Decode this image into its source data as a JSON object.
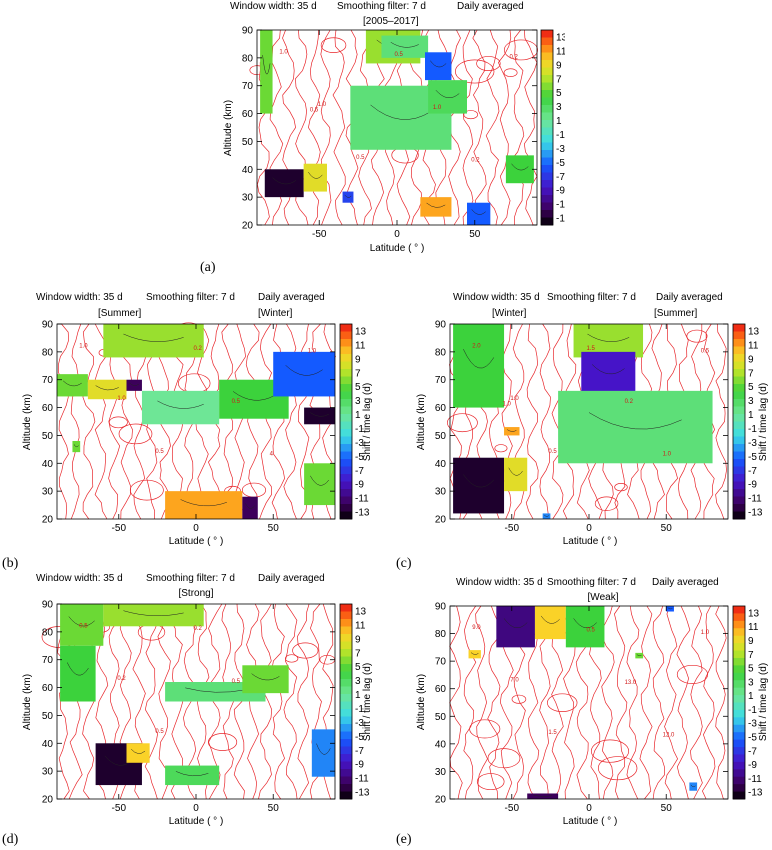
{
  "colorbar": {
    "label": "Shift / time lag (d)",
    "ticks": [
      "13",
      "11",
      "9",
      "7",
      "5",
      "3",
      "1",
      "-1",
      "-3",
      "-5",
      "-7",
      "-9",
      "-11",
      "-13"
    ],
    "range": [
      -13,
      13
    ]
  },
  "common": {
    "window": "Window width: 35 d",
    "smoothing": "Smoothing filter: 7 d",
    "averaging": "Daily averaged",
    "ylabel": "Altitude (km)",
    "xlabel": "Latitude ( ° )",
    "xticks": [
      "-50",
      "0",
      "50"
    ],
    "yticks": [
      "90",
      "80",
      "70",
      "60",
      "50",
      "40",
      "30",
      "20"
    ]
  },
  "chart_data": [
    {
      "type": "heatmap",
      "panel": "(a)",
      "header_center": "[2005–2017]",
      "xlim": [
        -90,
        90
      ],
      "ylim": [
        20,
        90
      ],
      "contour_labels": [
        "1.0",
        "1.0",
        "0.5",
        "0.5",
        "1.0",
        "0.2",
        "0.2",
        "0.5"
      ],
      "patches": [
        {
          "lat": [
            -88,
            -80
          ],
          "alt": [
            60,
            90
          ],
          "lag": 5
        },
        {
          "lat": [
            -20,
            15
          ],
          "alt": [
            78,
            90
          ],
          "lag": 6
        },
        {
          "lat": [
            -10,
            20
          ],
          "alt": [
            80,
            88
          ],
          "lag": 2
        },
        {
          "lat": [
            18,
            35
          ],
          "alt": [
            72,
            82
          ],
          "lag": -5
        },
        {
          "lat": [
            -30,
            35
          ],
          "alt": [
            47,
            70
          ],
          "lag": 2
        },
        {
          "lat": [
            20,
            45
          ],
          "alt": [
            60,
            72
          ],
          "lag": 3
        },
        {
          "lat": [
            -85,
            -60
          ],
          "alt": [
            30,
            40
          ],
          "lag": -12
        },
        {
          "lat": [
            -60,
            -45
          ],
          "alt": [
            32,
            42
          ],
          "lag": 8
        },
        {
          "lat": [
            -35,
            -28
          ],
          "alt": [
            28,
            32
          ],
          "lag": -6
        },
        {
          "lat": [
            15,
            35
          ],
          "alt": [
            23,
            30
          ],
          "lag": 10
        },
        {
          "lat": [
            45,
            60
          ],
          "alt": [
            20,
            28
          ],
          "lag": -5
        },
        {
          "lat": [
            70,
            88
          ],
          "alt": [
            35,
            45
          ],
          "lag": 4
        }
      ]
    },
    {
      "type": "heatmap",
      "panel": "(b)",
      "header_left": "[Summer]",
      "header_right": "[Winter]",
      "xlim": [
        -90,
        90
      ],
      "ylim": [
        20,
        90
      ],
      "contour_labels": [
        "1.0",
        "1.0",
        "0.5",
        "0.2",
        "0.5",
        "4",
        "1.0"
      ],
      "patches": [
        {
          "lat": [
            -60,
            5
          ],
          "alt": [
            78,
            90
          ],
          "lag": 6
        },
        {
          "lat": [
            -90,
            -70
          ],
          "alt": [
            64,
            72
          ],
          "lag": 5
        },
        {
          "lat": [
            -70,
            -45
          ],
          "alt": [
            63,
            70
          ],
          "lag": 8
        },
        {
          "lat": [
            -45,
            -35
          ],
          "alt": [
            66,
            70
          ],
          "lag": -11
        },
        {
          "lat": [
            -35,
            15
          ],
          "alt": [
            54,
            66
          ],
          "lag": 1
        },
        {
          "lat": [
            15,
            60
          ],
          "alt": [
            56,
            70
          ],
          "lag": 4
        },
        {
          "lat": [
            50,
            90
          ],
          "alt": [
            64,
            80
          ],
          "lag": -5
        },
        {
          "lat": [
            70,
            90
          ],
          "alt": [
            54,
            60
          ],
          "lag": -12
        },
        {
          "lat": [
            -80,
            -75
          ],
          "alt": [
            44,
            48
          ],
          "lag": 5
        },
        {
          "lat": [
            -20,
            30
          ],
          "alt": [
            20,
            30
          ],
          "lag": 10
        },
        {
          "lat": [
            30,
            40
          ],
          "alt": [
            20,
            28
          ],
          "lag": -11
        },
        {
          "lat": [
            70,
            90
          ],
          "alt": [
            25,
            40
          ],
          "lag": 5
        }
      ]
    },
    {
      "type": "heatmap",
      "panel": "(c)",
      "header_left": "[Winter]",
      "header_right": "[Summer]",
      "xlim": [
        -90,
        90
      ],
      "ylim": [
        20,
        90
      ],
      "contour_labels": [
        "2.0",
        "1.0",
        "0.5",
        "1.5",
        "0.2",
        "1.0",
        "0.5",
        "1.0"
      ],
      "patches": [
        {
          "lat": [
            -88,
            -55
          ],
          "alt": [
            60,
            90
          ],
          "lag": 4
        },
        {
          "lat": [
            -10,
            35
          ],
          "alt": [
            78,
            90
          ],
          "lag": 6
        },
        {
          "lat": [
            -5,
            30
          ],
          "alt": [
            65,
            80
          ],
          "lag": -8
        },
        {
          "lat": [
            -20,
            80
          ],
          "alt": [
            40,
            66
          ],
          "lag": 2
        },
        {
          "lat": [
            -88,
            -55
          ],
          "alt": [
            22,
            42
          ],
          "lag": -12
        },
        {
          "lat": [
            -55,
            -40
          ],
          "alt": [
            30,
            42
          ],
          "lag": 8
        },
        {
          "lat": [
            -55,
            -45
          ],
          "alt": [
            50,
            53
          ],
          "lag": 10
        },
        {
          "lat": [
            -30,
            -25
          ],
          "alt": [
            20,
            22
          ],
          "lag": -4
        }
      ]
    },
    {
      "type": "heatmap",
      "panel": "(d)",
      "header_center": "[Strong]",
      "xlim": [
        -90,
        90
      ],
      "ylim": [
        20,
        90
      ],
      "contour_labels": [
        "0.5",
        "0.2",
        "0.5",
        "0.2",
        "0.5"
      ],
      "patches": [
        {
          "lat": [
            -88,
            -60
          ],
          "alt": [
            75,
            90
          ],
          "lag": 5
        },
        {
          "lat": [
            -60,
            5
          ],
          "alt": [
            82,
            90
          ],
          "lag": 6
        },
        {
          "lat": [
            -88,
            -65
          ],
          "alt": [
            55,
            75
          ],
          "lag": 4
        },
        {
          "lat": [
            -20,
            45
          ],
          "alt": [
            55,
            62
          ],
          "lag": 2
        },
        {
          "lat": [
            30,
            60
          ],
          "alt": [
            58,
            68
          ],
          "lag": 5
        },
        {
          "lat": [
            -65,
            -35
          ],
          "alt": [
            25,
            40
          ],
          "lag": -12
        },
        {
          "lat": [
            -45,
            -30
          ],
          "alt": [
            33,
            40
          ],
          "lag": 9
        },
        {
          "lat": [
            -20,
            15
          ],
          "alt": [
            25,
            32
          ],
          "lag": 3
        },
        {
          "lat": [
            75,
            90
          ],
          "alt": [
            28,
            45
          ],
          "lag": -4
        }
      ]
    },
    {
      "type": "heatmap",
      "panel": "(e)",
      "header_center": "[Weak]",
      "xlim": [
        -90,
        90
      ],
      "ylim": [
        20,
        90
      ],
      "contour_labels": [
        "9.0",
        "7.0",
        "1.5",
        "0.5",
        "13.0",
        "12.0",
        "1.0"
      ],
      "patches": [
        {
          "lat": [
            -60,
            -35
          ],
          "alt": [
            75,
            90
          ],
          "lag": -10
        },
        {
          "lat": [
            -35,
            -15
          ],
          "alt": [
            78,
            90
          ],
          "lag": 9
        },
        {
          "lat": [
            -15,
            10
          ],
          "alt": [
            75,
            90
          ],
          "lag": 4
        },
        {
          "lat": [
            -78,
            -70
          ],
          "alt": [
            71,
            74
          ],
          "lag": 9
        },
        {
          "lat": [
            30,
            35
          ],
          "alt": [
            71,
            73
          ],
          "lag": 5
        },
        {
          "lat": [
            -40,
            -20
          ],
          "alt": [
            20,
            22
          ],
          "lag": -11
        },
        {
          "lat": [
            50,
            55
          ],
          "alt": [
            88,
            90
          ],
          "lag": -5
        },
        {
          "lat": [
            65,
            70
          ],
          "alt": [
            23,
            26
          ],
          "lag": -4
        }
      ]
    }
  ]
}
